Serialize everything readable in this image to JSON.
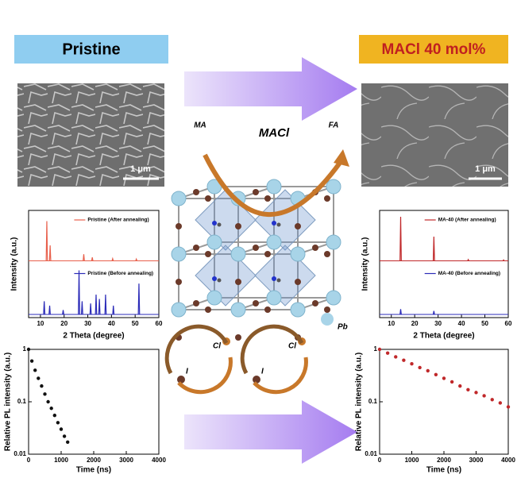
{
  "header": {
    "left": "Pristine",
    "right": "MACl 40 mol%"
  },
  "arrow_label": "MACl",
  "sem": [
    {
      "scale_bar": "1 μm"
    },
    {
      "scale_bar": "1 μm"
    }
  ],
  "molecules": {
    "left": "MA",
    "right": "FA"
  },
  "ions": {
    "pb": "Pb",
    "cl": [
      "Cl",
      "Cl"
    ],
    "i": [
      "I",
      "I"
    ]
  },
  "charts": [
    {
      "type": "xrd",
      "xlabel": "2 Theta (degree)",
      "ylabel": "Intensity (a.u.)",
      "xlim": [
        5,
        60
      ],
      "xticks": [
        10,
        20,
        30,
        40,
        50,
        60
      ],
      "series": [
        {
          "name": "Pristine (After annealing)",
          "color": "#e8604c",
          "x": [
            12.7,
            14.1,
            28.3,
            31.9,
            40.5,
            50.5
          ],
          "values": [
            90,
            35,
            15,
            8,
            5,
            4
          ]
        },
        {
          "name": "Pristine (Before annealing)",
          "color": "#2b2bb8",
          "x": [
            11.6,
            13.9,
            19.6,
            26.3,
            27.6,
            31.2,
            33.5,
            34.9,
            37.5,
            40.8,
            51.6
          ],
          "values": [
            30,
            20,
            10,
            100,
            30,
            25,
            45,
            35,
            45,
            20,
            70
          ]
        }
      ]
    },
    {
      "type": "xrd",
      "xlabel": "2 Theta (degree)",
      "ylabel": "Intensity (a.u.)",
      "xlim": [
        5,
        60
      ],
      "xticks": [
        10,
        20,
        30,
        40,
        50,
        60
      ],
      "series": [
        {
          "name": "MA-40 (After annealing)",
          "color": "#c0282a",
          "x": [
            14.0,
            28.2,
            42.9,
            58.0
          ],
          "values": [
            100,
            55,
            3,
            2
          ]
        },
        {
          "name": "MA-40 (Before annealing)",
          "color": "#2b2bb8",
          "x": [
            14.0,
            28.2
          ],
          "values": [
            12,
            8
          ]
        }
      ]
    },
    {
      "type": "pl",
      "xlabel": "Time (ns)",
      "ylabel": "Relative PL intensity (a.u.)",
      "xlim": [
        0,
        4000
      ],
      "ylim": [
        0.01,
        1
      ],
      "yscale": "log",
      "xticks": [
        0,
        1000,
        2000,
        3000,
        4000
      ],
      "yticks": [
        1,
        0.1,
        0.01
      ],
      "series": [
        {
          "color": "#111111",
          "x": [
            0,
            100,
            200,
            300,
            400,
            500,
            600,
            700,
            800,
            900,
            1000,
            1100,
            1200
          ],
          "values": [
            1,
            0.6,
            0.4,
            0.28,
            0.2,
            0.14,
            0.1,
            0.075,
            0.055,
            0.04,
            0.03,
            0.022,
            0.017
          ]
        }
      ]
    },
    {
      "type": "pl",
      "xlabel": "Time (ns)",
      "ylabel": "Relative PL intensity (a.u.)",
      "xlim": [
        0,
        4000
      ],
      "ylim": [
        0.01,
        1
      ],
      "yscale": "log",
      "xticks": [
        0,
        1000,
        2000,
        3000,
        4000
      ],
      "yticks": [
        1,
        0.1,
        0.01
      ],
      "series": [
        {
          "color": "#c0282a",
          "x": [
            0,
            250,
            500,
            750,
            1000,
            1250,
            1500,
            1750,
            2000,
            2250,
            2500,
            2750,
            3000,
            3250,
            3500,
            3750,
            4000
          ],
          "values": [
            1,
            0.85,
            0.72,
            0.62,
            0.53,
            0.45,
            0.39,
            0.33,
            0.28,
            0.24,
            0.2,
            0.17,
            0.15,
            0.13,
            0.11,
            0.095,
            0.08
          ]
        }
      ]
    }
  ]
}
